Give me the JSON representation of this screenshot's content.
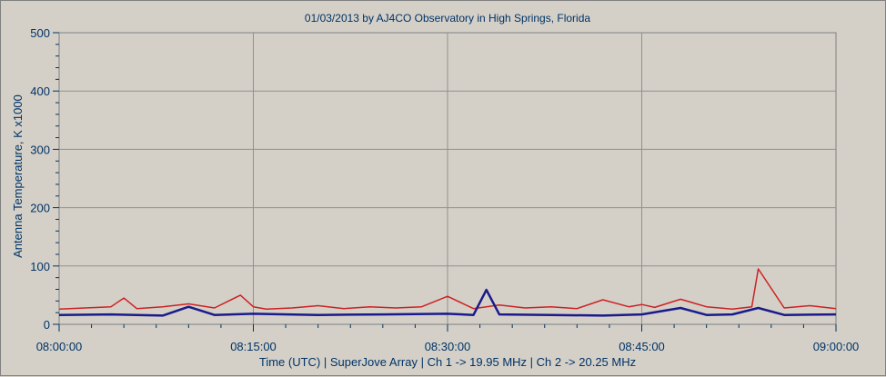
{
  "chart_data": {
    "type": "line",
    "title": "01/03/2013  by  AJ4CO Observatory  in  High Springs, Florida",
    "xlabel": "Time (UTC)  |  SuperJove Array  |  Ch 1 -> 19.95 MHz  |  Ch 2 -> 20.25 MHz",
    "ylabel": "Antenna Temperature, K x1000",
    "xlim": [
      "08:00:00",
      "09:00:00"
    ],
    "ylim": [
      0,
      500
    ],
    "x_ticks": [
      "08:00:00",
      "08:15:00",
      "08:30:00",
      "08:45:00",
      "09:00:00"
    ],
    "y_ticks": [
      0,
      100,
      200,
      300,
      400,
      500
    ],
    "grid": true,
    "series": [
      {
        "color": "#cc2222",
        "x": [
          "08:00:00",
          "08:02:00",
          "08:04:00",
          "08:05:00",
          "08:06:00",
          "08:08:00",
          "08:10:00",
          "08:12:00",
          "08:14:00",
          "08:15:00",
          "08:16:00",
          "08:18:00",
          "08:20:00",
          "08:22:00",
          "08:24:00",
          "08:26:00",
          "08:28:00",
          "08:30:00",
          "08:32:00",
          "08:34:00",
          "08:36:00",
          "08:38:00",
          "08:40:00",
          "08:42:00",
          "08:44:00",
          "08:45:00",
          "08:46:00",
          "08:48:00",
          "08:50:00",
          "08:52:00",
          "08:53:30",
          "08:54:00",
          "08:56:00",
          "08:58:00",
          "09:00:00"
        ],
        "values": [
          26,
          28,
          30,
          45,
          27,
          30,
          35,
          28,
          50,
          30,
          26,
          28,
          32,
          27,
          30,
          28,
          30,
          48,
          27,
          33,
          28,
          30,
          27,
          42,
          30,
          34,
          29,
          43,
          30,
          26,
          30,
          95,
          28,
          32,
          27
        ]
      },
      {
        "color": "#1a1a8c",
        "x": [
          "08:00:00",
          "08:04:00",
          "08:08:00",
          "08:10:00",
          "08:12:00",
          "08:15:00",
          "08:20:00",
          "08:25:00",
          "08:30:00",
          "08:32:00",
          "08:33:00",
          "08:34:00",
          "08:38:00",
          "08:42:00",
          "08:45:00",
          "08:48:00",
          "08:50:00",
          "08:52:00",
          "08:54:00",
          "08:56:00",
          "09:00:00"
        ],
        "values": [
          16,
          17,
          15,
          30,
          16,
          18,
          16,
          17,
          18,
          16,
          59,
          17,
          16,
          15,
          17,
          28,
          16,
          17,
          28,
          16,
          17
        ]
      }
    ]
  }
}
